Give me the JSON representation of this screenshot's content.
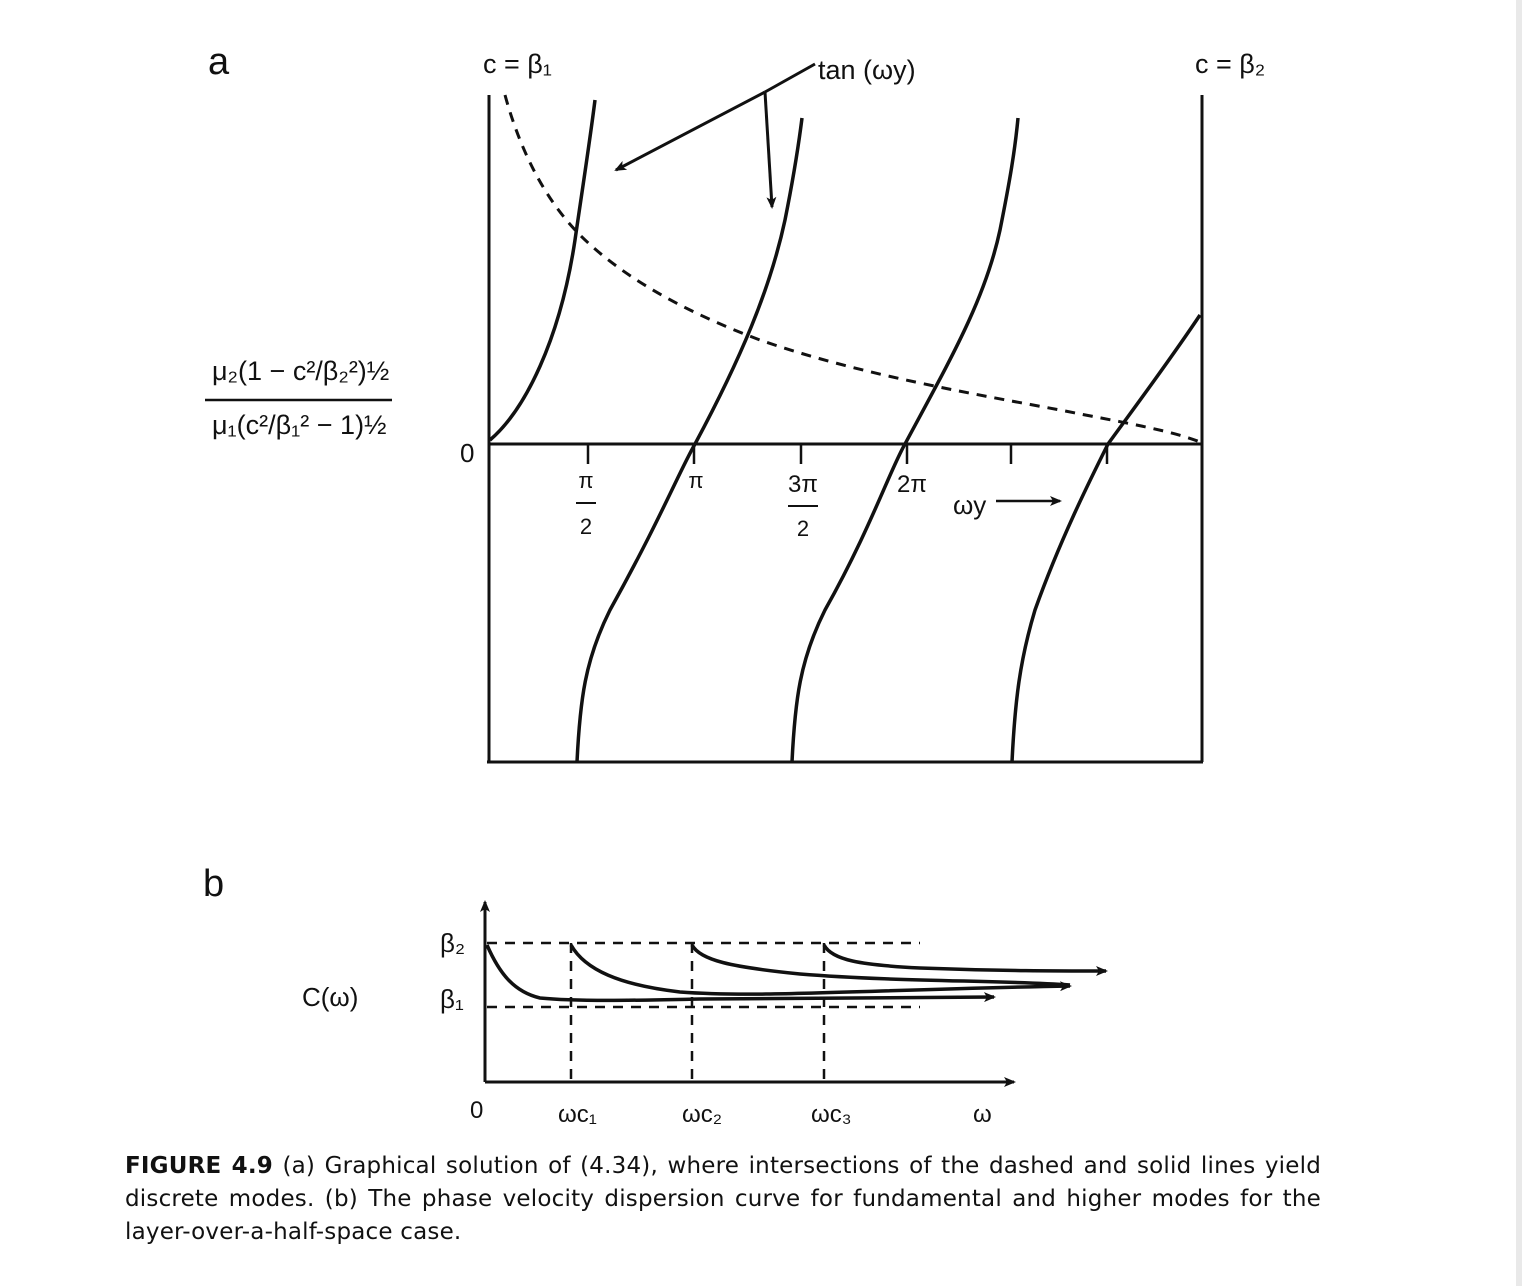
{
  "figure": {
    "panel_a_label": "a",
    "panel_b_label": "b",
    "caption_label": "FIGURE 4.9",
    "caption_text": "(a) Graphical solution of (4.34), where intersections of the dashed and solid lines yield discrete modes. (b) The phase velocity dispersion curve for fundamental and higher modes for the layer-over-a-half-space case."
  },
  "panel_a": {
    "left_boundary_label": "c = β₁",
    "right_boundary_label": "c = β₂",
    "solid_curve_label": "tan (ωy)",
    "origin_label": "0",
    "x_direction_label": "ωy",
    "y_expression": {
      "numerator": "μ₂(1 − c²/β₂²)½",
      "denominator": "μ₁(c²/β₁² − 1)½"
    },
    "ticks": [
      {
        "num": "π",
        "den": "2"
      },
      {
        "num": "π",
        "den": ""
      },
      {
        "num": "3π",
        "den": "2"
      },
      {
        "num": "2π",
        "den": ""
      },
      {
        "num": "",
        "den": ""
      }
    ]
  },
  "panel_b": {
    "y_label": "C(ω)",
    "y_ticks": [
      "β₂",
      "β₁"
    ],
    "origin_label": "0",
    "x_ticks": [
      "ωc₁",
      "ωc₂",
      "ωc₃"
    ],
    "x_axis_label": "ω"
  }
}
